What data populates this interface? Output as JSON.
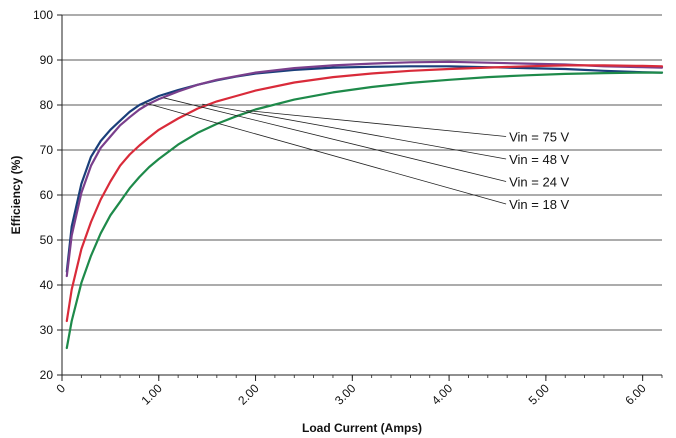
{
  "chart_data": {
    "type": "line",
    "title": "",
    "xlabel": "Load Current (Amps)",
    "ylabel": "Efficiency (%)",
    "xlim": [
      0,
      6.2
    ],
    "ylim": [
      20,
      100
    ],
    "grid": "horizontal",
    "x_ticks": [
      0,
      1,
      2,
      3,
      4,
      5,
      6
    ],
    "x_tick_labels": [
      "0",
      "1.00",
      "2.00",
      "3.00",
      "4.00",
      "5.00",
      "6.00"
    ],
    "y_ticks": [
      20,
      30,
      40,
      50,
      60,
      70,
      80,
      90,
      100
    ],
    "y_tick_labels": [
      "20",
      "30",
      "40",
      "50",
      "60",
      "70",
      "80",
      "90",
      "100"
    ],
    "series": [
      {
        "name": "Vin = 18 V",
        "color": "#1a3f7a",
        "x": [
          0.05,
          0.1,
          0.2,
          0.3,
          0.4,
          0.5,
          0.6,
          0.7,
          0.8,
          0.9,
          1.0,
          1.2,
          1.4,
          1.6,
          1.8,
          2.0,
          2.4,
          2.8,
          3.2,
          3.6,
          4.0,
          4.4,
          4.8,
          5.2,
          5.6,
          6.0,
          6.2
        ],
        "values": [
          43,
          53,
          62.5,
          68.5,
          72,
          74.5,
          76.5,
          78.5,
          80,
          81,
          82,
          83.3,
          84.5,
          85.5,
          86.3,
          87,
          87.8,
          88.3,
          88.5,
          88.6,
          88.6,
          88.4,
          88.2,
          88,
          87.6,
          87.3,
          87.2
        ]
      },
      {
        "name": "Vin = 24 V",
        "color": "#7a3f8c",
        "x": [
          0.05,
          0.1,
          0.2,
          0.3,
          0.4,
          0.5,
          0.6,
          0.7,
          0.8,
          0.9,
          1.0,
          1.2,
          1.4,
          1.6,
          1.8,
          2.0,
          2.4,
          2.8,
          3.2,
          3.6,
          4.0,
          4.4,
          4.8,
          5.2,
          5.6,
          6.0,
          6.2
        ],
        "values": [
          42,
          51,
          60.5,
          66.5,
          70.5,
          73,
          75.5,
          77.3,
          79,
          80.3,
          81.3,
          83,
          84.5,
          85.6,
          86.4,
          87.2,
          88.2,
          88.8,
          89.2,
          89.5,
          89.6,
          89.4,
          89.2,
          89,
          88.6,
          88.4,
          88.3
        ]
      },
      {
        "name": "Vin = 48 V",
        "color": "#d92b3a",
        "x": [
          0.05,
          0.1,
          0.2,
          0.3,
          0.4,
          0.5,
          0.6,
          0.7,
          0.8,
          0.9,
          1.0,
          1.2,
          1.4,
          1.6,
          1.8,
          2.0,
          2.4,
          2.8,
          3.2,
          3.6,
          4.0,
          4.4,
          4.8,
          5.2,
          5.6,
          6.0,
          6.2
        ],
        "values": [
          32,
          39,
          48,
          54,
          59,
          63,
          66.5,
          69,
          71,
          72.8,
          74.5,
          77,
          79.2,
          80.8,
          82,
          83.2,
          85,
          86.2,
          87,
          87.6,
          88,
          88.3,
          88.6,
          88.8,
          88.8,
          88.7,
          88.6
        ]
      },
      {
        "name": "Vin = 75 V",
        "color": "#1e8a4a",
        "x": [
          0.05,
          0.1,
          0.2,
          0.3,
          0.4,
          0.5,
          0.6,
          0.7,
          0.8,
          0.9,
          1.0,
          1.2,
          1.4,
          1.6,
          1.8,
          2.0,
          2.4,
          2.8,
          3.2,
          3.6,
          4.0,
          4.4,
          4.8,
          5.2,
          5.6,
          6.0,
          6.2
        ],
        "values": [
          26,
          32,
          40.5,
          46.5,
          51.5,
          55.5,
          58.5,
          61.5,
          64,
          66.2,
          68,
          71.2,
          73.8,
          75.8,
          77.5,
          79,
          81.2,
          82.8,
          84,
          84.9,
          85.6,
          86.2,
          86.6,
          86.9,
          87.1,
          87.2,
          87.2
        ]
      }
    ],
    "annotations": [
      {
        "text": "Vin = 75 V",
        "target": "Vin = 75 V",
        "point": [
          1.9,
          78.8
        ],
        "label_at": [
          4.62,
          73
        ]
      },
      {
        "text": "Vin = 48 V",
        "target": "Vin = 48 V",
        "point": [
          1.45,
          80.2
        ],
        "label_at": [
          4.62,
          68
        ]
      },
      {
        "text": "Vin = 24 V",
        "target": "Vin = 24 V",
        "point": [
          1.05,
          81.6
        ],
        "label_at": [
          4.62,
          63
        ]
      },
      {
        "text": "Vin = 18 V",
        "target": "Vin = 18 V",
        "point": [
          0.85,
          80.5
        ],
        "label_at": [
          4.62,
          58
        ]
      }
    ]
  }
}
